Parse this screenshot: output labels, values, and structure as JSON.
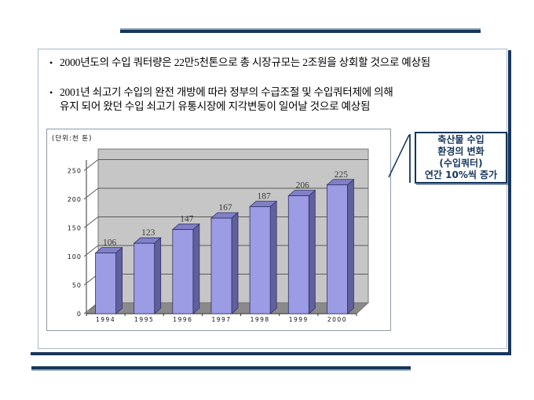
{
  "slide": {
    "bullets": [
      {
        "marker": "•",
        "text": "2000년도의 수입 쿼터량은 22만5천톤으로 총 시장규모는 2조원을 상회할 것으로 예상됨"
      },
      {
        "marker": "•",
        "text": "2001년 쇠고기 수입의 완전 개방에 따라 정부의 수급조절 및 수입쿼터제에 의해\n유지 되어 왔던 수입 쇠고기 유통시장에 지각변동이 일어날 것으로 예상됨"
      }
    ],
    "callout": {
      "lines": [
        "축산물 수입",
        "환경의 변화",
        "(수입쿼터)",
        "연간 10%씩 증가"
      ]
    }
  },
  "chart_data": {
    "type": "bar",
    "style": "3d-column",
    "title": "",
    "unit_label": "(단위:천 톤)",
    "categories": [
      "1994",
      "1995",
      "1996",
      "1997",
      "1998",
      "1999",
      "2000"
    ],
    "values": [
      106,
      123,
      147,
      167,
      187,
      206,
      225
    ],
    "ylabel": "천 톤",
    "ylim": [
      0,
      250
    ],
    "ytick_step": 50,
    "grid": true,
    "legend": "none",
    "colors": {
      "bar_front": "#9c9ce4",
      "bar_top": "#8080c8",
      "bar_side": "#60609c",
      "bar_outline": "#2f2f66",
      "wall": "#c6c6c6",
      "floor": "#8a8a8a",
      "gridline": "#5a5a5a",
      "axis": "#333333",
      "value_label": "#3a3a3a",
      "accent_navy": "#16365c"
    }
  }
}
